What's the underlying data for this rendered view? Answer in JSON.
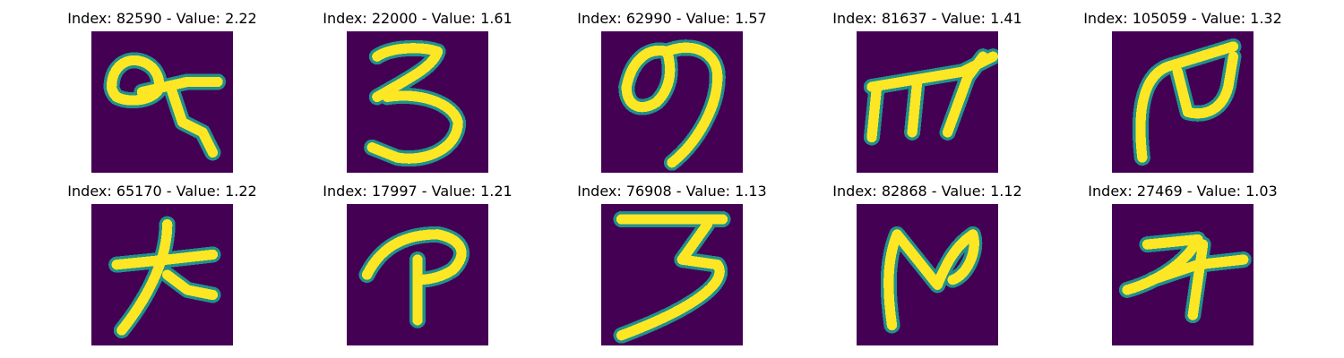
{
  "colors": {
    "background": "#440154",
    "stroke": "#fde725",
    "halo": "#21918c"
  },
  "chart_data": {
    "type": "image-grid",
    "colormap": "viridis",
    "axes": "off",
    "panels": [
      {
        "title": "Index: 82590 - Value: 2.22",
        "index": 82590,
        "value": 2.22,
        "glyph": "glyph-82590"
      },
      {
        "title": "Index: 22000 - Value: 1.61",
        "index": 22000,
        "value": 1.61,
        "glyph": "glyph-22000"
      },
      {
        "title": "Index: 62990 - Value: 1.57",
        "index": 62990,
        "value": 1.57,
        "glyph": "glyph-62990"
      },
      {
        "title": "Index: 81637 - Value: 1.41",
        "index": 81637,
        "value": 1.41,
        "glyph": "glyph-81637"
      },
      {
        "title": "Index: 105059 - Value: 1.32",
        "index": 105059,
        "value": 1.32,
        "glyph": "glyph-105059"
      },
      {
        "title": "Index: 65170 - Value: 1.22",
        "index": 65170,
        "value": 1.22,
        "glyph": "glyph-65170"
      },
      {
        "title": "Index: 17997 - Value: 1.21",
        "index": 17997,
        "value": 1.21,
        "glyph": "glyph-17997"
      },
      {
        "title": "Index: 76908 - Value: 1.13",
        "index": 76908,
        "value": 1.13,
        "glyph": "glyph-76908"
      },
      {
        "title": "Index: 82868 - Value: 1.12",
        "index": 82868,
        "value": 1.12,
        "glyph": "glyph-82868"
      },
      {
        "title": "Index: 27469 - Value: 1.03",
        "index": 27469,
        "value": 1.03,
        "glyph": "glyph-27469"
      }
    ]
  }
}
